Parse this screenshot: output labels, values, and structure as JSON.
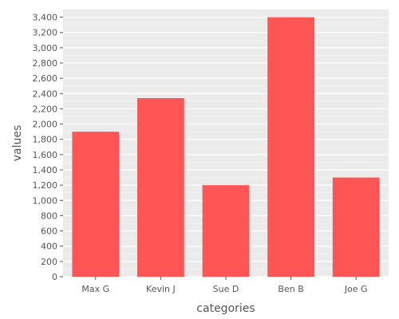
{
  "chart_data": {
    "type": "bar",
    "categories": [
      "Max G",
      "Kevin J",
      "Sue D",
      "Ben B",
      "Joe G"
    ],
    "values": [
      1900,
      2340,
      1200,
      3400,
      1300
    ],
    "xlabel": "categories",
    "ylabel": "values",
    "ylim": [
      0,
      3500
    ],
    "yticks": [
      0,
      200,
      400,
      600,
      800,
      1000,
      1200,
      1400,
      1600,
      1800,
      2000,
      2200,
      2400,
      2600,
      2800,
      3000,
      3200,
      3400
    ],
    "ytick_labels": [
      "0",
      "200",
      "400",
      "600",
      "800",
      "1,000",
      "1,200",
      "1,400",
      "1,600",
      "1,800",
      "2,000",
      "2,200",
      "2,400",
      "2,600",
      "2,800",
      "3,000",
      "3,200",
      "3,400"
    ],
    "grid": true,
    "bar_color": "#ff5555",
    "plot_background": "#ebebeb",
    "grid_color": "#ffffff"
  }
}
